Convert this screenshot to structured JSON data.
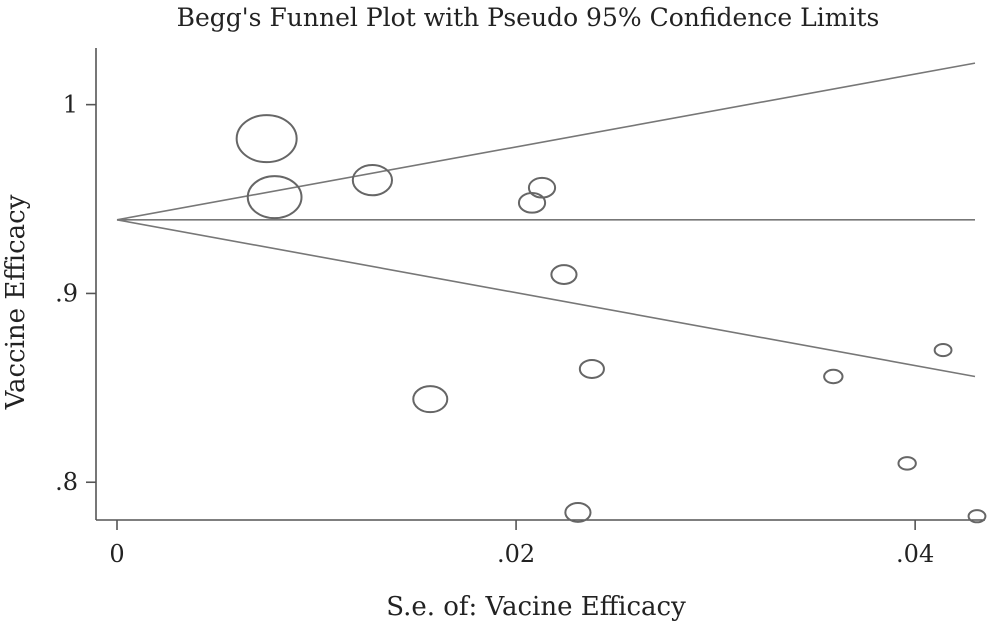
{
  "chart_data": {
    "type": "scatter",
    "title": "Begg's Funnel Plot with Pseudo 95% Confidence Limits",
    "xlabel": "S.e. of: Vacine Efficacy",
    "ylabel": "Vaccine Efficacy",
    "xlim": [
      0,
      0.043
    ],
    "ylim": [
      0.78,
      1.03
    ],
    "x_ticks": [
      0,
      0.02,
      0.04
    ],
    "x_tick_labels": [
      "0",
      ".02",
      ".04"
    ],
    "y_ticks": [
      0.8,
      0.9,
      1.0
    ],
    "y_tick_labels": [
      ".8",
      ".9",
      "1"
    ],
    "pooled_estimate": 0.939,
    "pseudo_ci_limits": {
      "x": [
        0,
        0.043
      ],
      "upper": [
        0.939,
        1.022
      ],
      "lower": [
        0.939,
        0.856
      ]
    },
    "points": [
      {
        "x": 0.0075,
        "y": 0.982,
        "weight": 1.0
      },
      {
        "x": 0.0079,
        "y": 0.951,
        "weight": 0.88
      },
      {
        "x": 0.0128,
        "y": 0.96,
        "weight": 0.6
      },
      {
        "x": 0.0213,
        "y": 0.956,
        "weight": 0.35
      },
      {
        "x": 0.0208,
        "y": 0.948,
        "weight": 0.35
      },
      {
        "x": 0.0224,
        "y": 0.91,
        "weight": 0.33
      },
      {
        "x": 0.0238,
        "y": 0.86,
        "weight": 0.31
      },
      {
        "x": 0.0157,
        "y": 0.844,
        "weight": 0.5
      },
      {
        "x": 0.0231,
        "y": 0.784,
        "weight": 0.33
      },
      {
        "x": 0.0359,
        "y": 0.856,
        "weight": 0.2
      },
      {
        "x": 0.0414,
        "y": 0.87,
        "weight": 0.17
      },
      {
        "x": 0.0396,
        "y": 0.81,
        "weight": 0.18
      },
      {
        "x": 0.0431,
        "y": 0.782,
        "weight": 0.17
      }
    ]
  }
}
